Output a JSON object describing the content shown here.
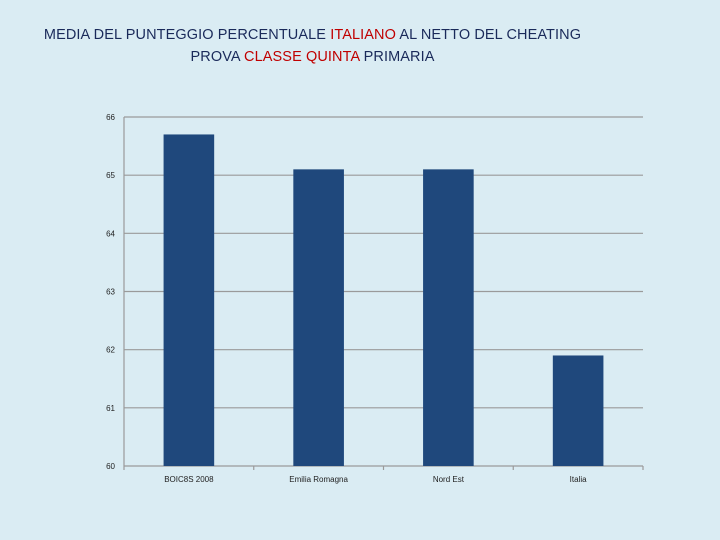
{
  "title": {
    "line1_a": "MEDIA DEL PUNTEGGIO PERCENTUALE ",
    "line1_b": "ITALIANO",
    "line1_c": " AL NETTO DEL CHEATING",
    "line2_a": "PROVA ",
    "line2_b": "CLASSE QUINTA",
    "line2_c": " PRIMARIA"
  },
  "colors": {
    "bar": "#1f487c",
    "grid": "#9a9a9a",
    "highlight": "#c00000",
    "text": "#1a2a5a"
  },
  "chart_data": {
    "type": "bar",
    "title": "MEDIA DEL PUNTEGGIO PERCENTUALE ITALIANO AL NETTO DEL CHEATING PROVA CLASSE QUINTA PRIMARIA",
    "categories": [
      "BOIC8S 2008",
      "Emilia Romagna",
      "Nord Est",
      "Italia"
    ],
    "values": [
      65.7,
      65.1,
      65.1,
      61.9
    ],
    "ylim": [
      60,
      66
    ],
    "yticks": [
      60,
      61,
      62,
      63,
      64,
      65,
      66
    ],
    "xlabel": "",
    "ylabel": "",
    "grid": true,
    "legend": "none"
  }
}
